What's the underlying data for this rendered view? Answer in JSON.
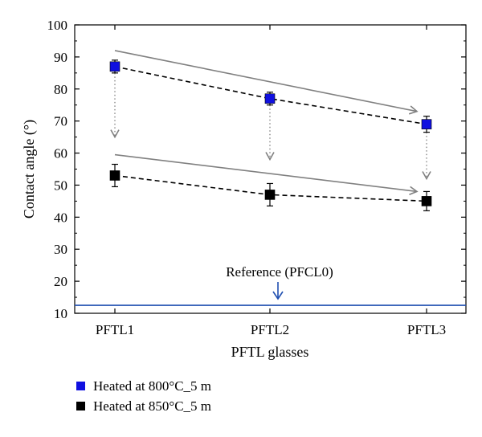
{
  "chart_data": {
    "type": "scatter",
    "xlabel": "PFTL glasses",
    "ylabel": "Contact angle (°)",
    "categories": [
      "PFTL1",
      "PFTL2",
      "PFTL3"
    ],
    "ylim": [
      10,
      100
    ],
    "yticks": [
      10,
      20,
      30,
      40,
      50,
      60,
      70,
      80,
      90,
      100
    ],
    "grid": false,
    "series": [
      {
        "name": "Heated at 800°C_5 m",
        "color": "#1010e0",
        "values": [
          87,
          77,
          69
        ],
        "errors": [
          2,
          2,
          2.5
        ]
      },
      {
        "name": "Heated at 850°C_5 m",
        "color": "#000000",
        "values": [
          53,
          47,
          45
        ],
        "errors": [
          3.5,
          3.5,
          3
        ]
      }
    ],
    "reference": {
      "label": "Reference (PFCL0)",
      "value": 12.5,
      "color": "#1f4fb0"
    },
    "trend_arrows": [
      {
        "from": 92,
        "to": 73,
        "color": "#808080"
      },
      {
        "from": 59.5,
        "to": 48,
        "color": "#808080"
      }
    ],
    "drop_arrows": [
      {
        "category": "PFTL1",
        "from": 85,
        "to": 65
      },
      {
        "category": "PFTL2",
        "from": 75,
        "to": 58
      },
      {
        "category": "PFTL3",
        "from": 66.5,
        "to": 52
      }
    ],
    "legend_position": "bottom-left"
  }
}
